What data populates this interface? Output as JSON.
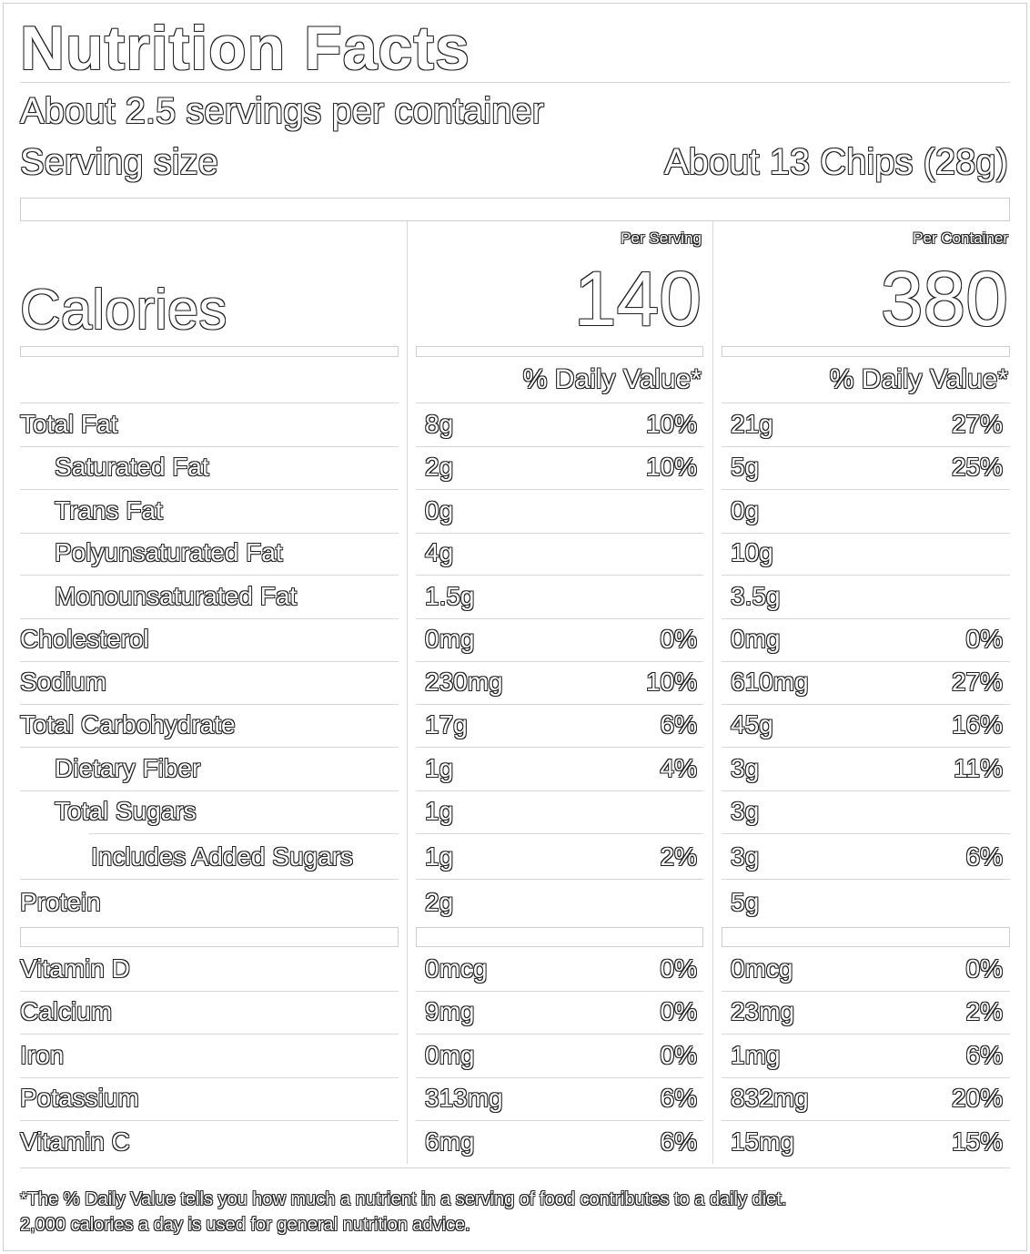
{
  "title": "Nutrition Facts",
  "servings_per_container": "About 2.5 servings per container",
  "serving_size_label": "Serving size",
  "serving_size_value": "About 13 Chips (28g)",
  "columns": {
    "per_serving": "Per Serving",
    "per_container": "Per Container"
  },
  "calories_label": "Calories",
  "calories": {
    "per_serving": "140",
    "per_container": "380"
  },
  "dv_header": "% Daily Value*",
  "nutrients": [
    {
      "name": "Total Fat",
      "serv_amt": "8g",
      "serv_dv": "10%",
      "cont_amt": "21g",
      "cont_dv": "27%"
    },
    {
      "name": "Saturated Fat",
      "serv_amt": "2g",
      "serv_dv": "10%",
      "cont_amt": "5g",
      "cont_dv": "25%"
    },
    {
      "name": "Trans Fat",
      "serv_amt": "0g",
      "serv_dv": "",
      "cont_amt": "0g",
      "cont_dv": ""
    },
    {
      "name": "Polyunsaturated Fat",
      "serv_amt": "4g",
      "serv_dv": "",
      "cont_amt": "10g",
      "cont_dv": ""
    },
    {
      "name": "Monounsaturated Fat",
      "serv_amt": "1.5g",
      "serv_dv": "",
      "cont_amt": "3.5g",
      "cont_dv": ""
    },
    {
      "name": "Cholesterol",
      "serv_amt": "0mg",
      "serv_dv": "0%",
      "cont_amt": "0mg",
      "cont_dv": "0%"
    },
    {
      "name": "Sodium",
      "serv_amt": "230mg",
      "serv_dv": "10%",
      "cont_amt": "610mg",
      "cont_dv": "27%"
    },
    {
      "name": "Total Carbohydrate",
      "serv_amt": "17g",
      "serv_dv": "6%",
      "cont_amt": "45g",
      "cont_dv": "16%"
    },
    {
      "name": "Dietary Fiber",
      "serv_amt": "1g",
      "serv_dv": "4%",
      "cont_amt": "3g",
      "cont_dv": "11%"
    },
    {
      "name": "Total Sugars",
      "serv_amt": "1g",
      "serv_dv": "",
      "cont_amt": "3g",
      "cont_dv": ""
    },
    {
      "name": "Includes Added Sugars",
      "serv_amt": "1g",
      "serv_dv": "2%",
      "cont_amt": "3g",
      "cont_dv": "6%"
    },
    {
      "name": "Protein",
      "serv_amt": "2g",
      "serv_dv": "",
      "cont_amt": "5g",
      "cont_dv": ""
    }
  ],
  "vitamins": [
    {
      "name": "Vitamin D",
      "serv_amt": "0mcg",
      "serv_dv": "0%",
      "cont_amt": "0mcg",
      "cont_dv": "0%"
    },
    {
      "name": "Calcium",
      "serv_amt": "9mg",
      "serv_dv": "0%",
      "cont_amt": "23mg",
      "cont_dv": "2%"
    },
    {
      "name": "Iron",
      "serv_amt": "0mg",
      "serv_dv": "0%",
      "cont_amt": "1mg",
      "cont_dv": "6%"
    },
    {
      "name": "Potassium",
      "serv_amt": "313mg",
      "serv_dv": "6%",
      "cont_amt": "832mg",
      "cont_dv": "20%"
    },
    {
      "name": "Vitamin C",
      "serv_amt": "6mg",
      "serv_dv": "6%",
      "cont_amt": "15mg",
      "cont_dv": "15%"
    }
  ],
  "footnote_1": "*The % Daily Value tells you how much a nutrient in a serving of food contributes to a daily diet.",
  "footnote_2": "2,000 calories a day is used for general nutrition advice."
}
